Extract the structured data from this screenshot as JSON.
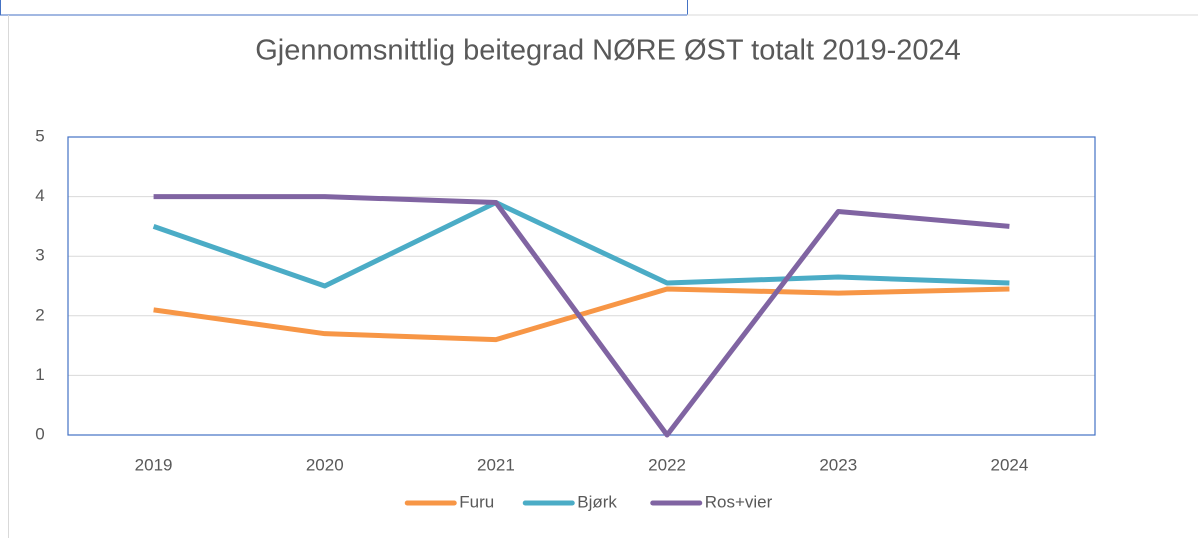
{
  "chart_data": {
    "type": "line",
    "title": "Gjennomsnittlig beitegrad NØRE ØST totalt 2019-2024",
    "categories": [
      "2019",
      "2020",
      "2021",
      "2022",
      "2023",
      "2024"
    ],
    "series": [
      {
        "name": "Furu",
        "color": "#f79646",
        "values": [
          2.1,
          1.7,
          1.6,
          2.45,
          2.38,
          2.45
        ]
      },
      {
        "name": "Bjørk",
        "color": "#4bacc6",
        "values": [
          3.5,
          2.5,
          3.9,
          2.55,
          2.65,
          2.55
        ]
      },
      {
        "name": "Ros+vier",
        "color": "#8064a2",
        "values": [
          4.0,
          4.0,
          3.9,
          0,
          3.75,
          3.5
        ]
      }
    ],
    "ylim": [
      0,
      5
    ],
    "yticks": [
      0,
      1,
      2,
      3,
      4,
      5
    ],
    "grid": true,
    "legend": "bottom"
  }
}
